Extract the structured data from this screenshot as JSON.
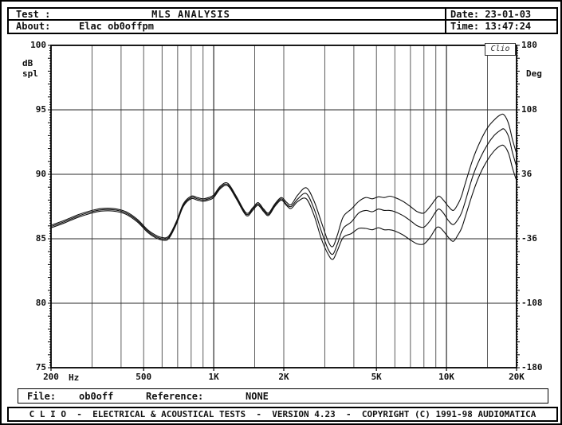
{
  "header": {
    "test_label": "Test :",
    "test_value": "",
    "title": "MLS ANALYSIS",
    "about_label": "About:",
    "about_value": "Elac ob0offpm",
    "date_label": "Date:",
    "date_value": "23-01-03",
    "time_label": "Time:",
    "time_value": "13:47:24"
  },
  "file_bar": {
    "file_label": "File:",
    "file_value": "ob0off",
    "reference_label": "Reference:",
    "reference_value": "NONE"
  },
  "footer": {
    "credit": "C L I O  -  ELECTRICAL & ACOUSTICAL TESTS  -  VERSION 4.23  -  COPYRIGHT (C) 1991-98 AUDIOMATICA"
  },
  "chart_data": {
    "type": "line",
    "x_scale": "log",
    "x_range_hz": [
      200,
      20000
    ],
    "x_unit": "Hz",
    "stamp": "Clio",
    "y_left": {
      "unit": "dB\nspl",
      "min": 75,
      "max": 100,
      "tick_labels": [
        "100",
        "95",
        "90",
        "85",
        "80",
        "75"
      ],
      "tick_values_db": [
        100,
        95,
        90,
        85,
        80,
        75
      ]
    },
    "y_right": {
      "unit": "Deg",
      "min": -180,
      "max": 180,
      "tick_labels": [
        "180",
        "108",
        "36",
        "-36",
        "-108",
        "-180"
      ],
      "tick_values_db": [
        100,
        95,
        90,
        85,
        80,
        75
      ]
    },
    "x_ticks": [
      {
        "hz": 200,
        "label": "200"
      },
      {
        "hz": 500,
        "label": "500"
      },
      {
        "hz": 1000,
        "label": "1K"
      },
      {
        "hz": 2000,
        "label": "2K"
      },
      {
        "hz": 5000,
        "label": "5K"
      },
      {
        "hz": 10000,
        "label": "10K"
      },
      {
        "hz": 20000,
        "label": "20K"
      }
    ],
    "x_gridlines_hz": [
      300,
      400,
      500,
      600,
      700,
      800,
      900,
      1000,
      1500,
      2000,
      3000,
      4000,
      5000,
      6000,
      7000,
      8000,
      9000,
      10000,
      15000
    ],
    "y_gridlines_db": [
      95,
      90,
      85,
      80
    ],
    "curve_color": "#111111",
    "series": [
      {
        "name": "upper-response-curve",
        "points": [
          [
            200,
            86.05
          ],
          [
            230,
            86.45
          ],
          [
            260,
            86.85
          ],
          [
            300,
            87.2
          ],
          [
            330,
            87.35
          ],
          [
            370,
            87.35
          ],
          [
            420,
            87.1
          ],
          [
            470,
            86.5
          ],
          [
            520,
            85.7
          ],
          [
            560,
            85.3
          ],
          [
            600,
            85.1
          ],
          [
            640,
            85.2
          ],
          [
            690,
            86.3
          ],
          [
            740,
            87.7
          ],
          [
            800,
            88.3
          ],
          [
            850,
            88.2
          ],
          [
            900,
            88.1
          ],
          [
            950,
            88.2
          ],
          [
            1000,
            88.4
          ],
          [
            1070,
            89.1
          ],
          [
            1150,
            89.3
          ],
          [
            1250,
            88.3
          ],
          [
            1380,
            87.0
          ],
          [
            1470,
            87.4
          ],
          [
            1550,
            87.8
          ],
          [
            1640,
            87.3
          ],
          [
            1720,
            87.0
          ],
          [
            1830,
            87.7
          ],
          [
            1950,
            88.2
          ],
          [
            2050,
            87.85
          ],
          [
            2150,
            87.65
          ],
          [
            2300,
            88.4
          ],
          [
            2500,
            88.95
          ],
          [
            2700,
            87.9
          ],
          [
            2900,
            86.3
          ],
          [
            3100,
            84.8
          ],
          [
            3250,
            84.4
          ],
          [
            3400,
            85.3
          ],
          [
            3600,
            86.7
          ],
          [
            3900,
            87.3
          ],
          [
            4200,
            87.9
          ],
          [
            4500,
            88.2
          ],
          [
            4800,
            88.1
          ],
          [
            5100,
            88.25
          ],
          [
            5400,
            88.2
          ],
          [
            5700,
            88.3
          ],
          [
            6000,
            88.2
          ],
          [
            6500,
            87.9
          ],
          [
            7000,
            87.5
          ],
          [
            7500,
            87.1
          ],
          [
            8000,
            87.0
          ],
          [
            8500,
            87.5
          ],
          [
            9000,
            88.1
          ],
          [
            9300,
            88.3
          ],
          [
            9700,
            88.0
          ],
          [
            10200,
            87.5
          ],
          [
            10700,
            87.2
          ],
          [
            11200,
            87.7
          ],
          [
            11600,
            88.3
          ],
          [
            12000,
            89.2
          ],
          [
            13000,
            91.2
          ],
          [
            14000,
            92.6
          ],
          [
            15000,
            93.6
          ],
          [
            16000,
            94.2
          ],
          [
            17000,
            94.6
          ],
          [
            17700,
            94.6
          ],
          [
            18500,
            93.9
          ],
          [
            19200,
            92.7
          ],
          [
            20000,
            91.6
          ]
        ]
      },
      {
        "name": "middle-response-curve",
        "points": [
          [
            200,
            85.95
          ],
          [
            230,
            86.35
          ],
          [
            260,
            86.75
          ],
          [
            300,
            87.1
          ],
          [
            330,
            87.25
          ],
          [
            370,
            87.25
          ],
          [
            420,
            87.0
          ],
          [
            470,
            86.4
          ],
          [
            520,
            85.6
          ],
          [
            560,
            85.2
          ],
          [
            600,
            85.0
          ],
          [
            640,
            85.1
          ],
          [
            690,
            86.2
          ],
          [
            740,
            87.6
          ],
          [
            800,
            88.2
          ],
          [
            850,
            88.1
          ],
          [
            900,
            88.0
          ],
          [
            950,
            88.1
          ],
          [
            1000,
            88.3
          ],
          [
            1070,
            89.0
          ],
          [
            1150,
            89.2
          ],
          [
            1250,
            88.2
          ],
          [
            1380,
            86.9
          ],
          [
            1470,
            87.3
          ],
          [
            1550,
            87.7
          ],
          [
            1640,
            87.2
          ],
          [
            1720,
            86.9
          ],
          [
            1830,
            87.6
          ],
          [
            1950,
            88.1
          ],
          [
            2050,
            87.7
          ],
          [
            2150,
            87.5
          ],
          [
            2300,
            88.1
          ],
          [
            2500,
            88.5
          ],
          [
            2700,
            87.3
          ],
          [
            2900,
            85.6
          ],
          [
            3100,
            84.2
          ],
          [
            3250,
            83.8
          ],
          [
            3400,
            84.6
          ],
          [
            3600,
            85.8
          ],
          [
            3900,
            86.3
          ],
          [
            4200,
            87.0
          ],
          [
            4500,
            87.2
          ],
          [
            4800,
            87.1
          ],
          [
            5100,
            87.3
          ],
          [
            5400,
            87.2
          ],
          [
            5700,
            87.2
          ],
          [
            6000,
            87.1
          ],
          [
            6500,
            86.8
          ],
          [
            7000,
            86.4
          ],
          [
            7500,
            86.0
          ],
          [
            8000,
            85.9
          ],
          [
            8500,
            86.4
          ],
          [
            9000,
            87.1
          ],
          [
            9300,
            87.3
          ],
          [
            9700,
            87.0
          ],
          [
            10200,
            86.4
          ],
          [
            10700,
            86.1
          ],
          [
            11200,
            86.5
          ],
          [
            11600,
            87.0
          ],
          [
            12000,
            87.8
          ],
          [
            13000,
            89.9
          ],
          [
            14000,
            91.3
          ],
          [
            15000,
            92.3
          ],
          [
            16000,
            93.0
          ],
          [
            17000,
            93.4
          ],
          [
            17700,
            93.5
          ],
          [
            18500,
            92.9
          ],
          [
            19200,
            91.7
          ],
          [
            20000,
            90.6
          ]
        ]
      },
      {
        "name": "lower-response-curve",
        "points": [
          [
            200,
            85.85
          ],
          [
            230,
            86.25
          ],
          [
            260,
            86.65
          ],
          [
            300,
            87.0
          ],
          [
            330,
            87.15
          ],
          [
            370,
            87.15
          ],
          [
            420,
            86.9
          ],
          [
            470,
            86.3
          ],
          [
            520,
            85.5
          ],
          [
            560,
            85.1
          ],
          [
            600,
            84.9
          ],
          [
            640,
            85.0
          ],
          [
            690,
            86.1
          ],
          [
            740,
            87.5
          ],
          [
            800,
            88.1
          ],
          [
            850,
            88.0
          ],
          [
            900,
            87.9
          ],
          [
            950,
            88.0
          ],
          [
            1000,
            88.2
          ],
          [
            1070,
            88.9
          ],
          [
            1150,
            89.1
          ],
          [
            1250,
            88.1
          ],
          [
            1380,
            86.8
          ],
          [
            1470,
            87.2
          ],
          [
            1550,
            87.6
          ],
          [
            1640,
            87.1
          ],
          [
            1720,
            86.8
          ],
          [
            1830,
            87.5
          ],
          [
            1950,
            88.0
          ],
          [
            2050,
            87.6
          ],
          [
            2150,
            87.35
          ],
          [
            2300,
            87.9
          ],
          [
            2500,
            88.1
          ],
          [
            2700,
            86.8
          ],
          [
            2900,
            85.0
          ],
          [
            3100,
            83.8
          ],
          [
            3250,
            83.4
          ],
          [
            3400,
            84.1
          ],
          [
            3600,
            85.1
          ],
          [
            3900,
            85.4
          ],
          [
            4200,
            85.8
          ],
          [
            4500,
            85.8
          ],
          [
            4800,
            85.7
          ],
          [
            5100,
            85.85
          ],
          [
            5400,
            85.7
          ],
          [
            5700,
            85.7
          ],
          [
            6000,
            85.6
          ],
          [
            6500,
            85.3
          ],
          [
            7000,
            84.9
          ],
          [
            7500,
            84.6
          ],
          [
            8000,
            84.6
          ],
          [
            8500,
            85.1
          ],
          [
            9000,
            85.8
          ],
          [
            9300,
            85.9
          ],
          [
            9700,
            85.6
          ],
          [
            10200,
            85.1
          ],
          [
            10700,
            84.8
          ],
          [
            11200,
            85.3
          ],
          [
            11600,
            85.8
          ],
          [
            12000,
            86.6
          ],
          [
            13000,
            88.6
          ],
          [
            14000,
            90.1
          ],
          [
            15000,
            91.1
          ],
          [
            16000,
            91.8
          ],
          [
            17000,
            92.2
          ],
          [
            17700,
            92.2
          ],
          [
            18500,
            91.6
          ],
          [
            19200,
            90.5
          ],
          [
            20000,
            89.5
          ]
        ]
      }
    ]
  }
}
